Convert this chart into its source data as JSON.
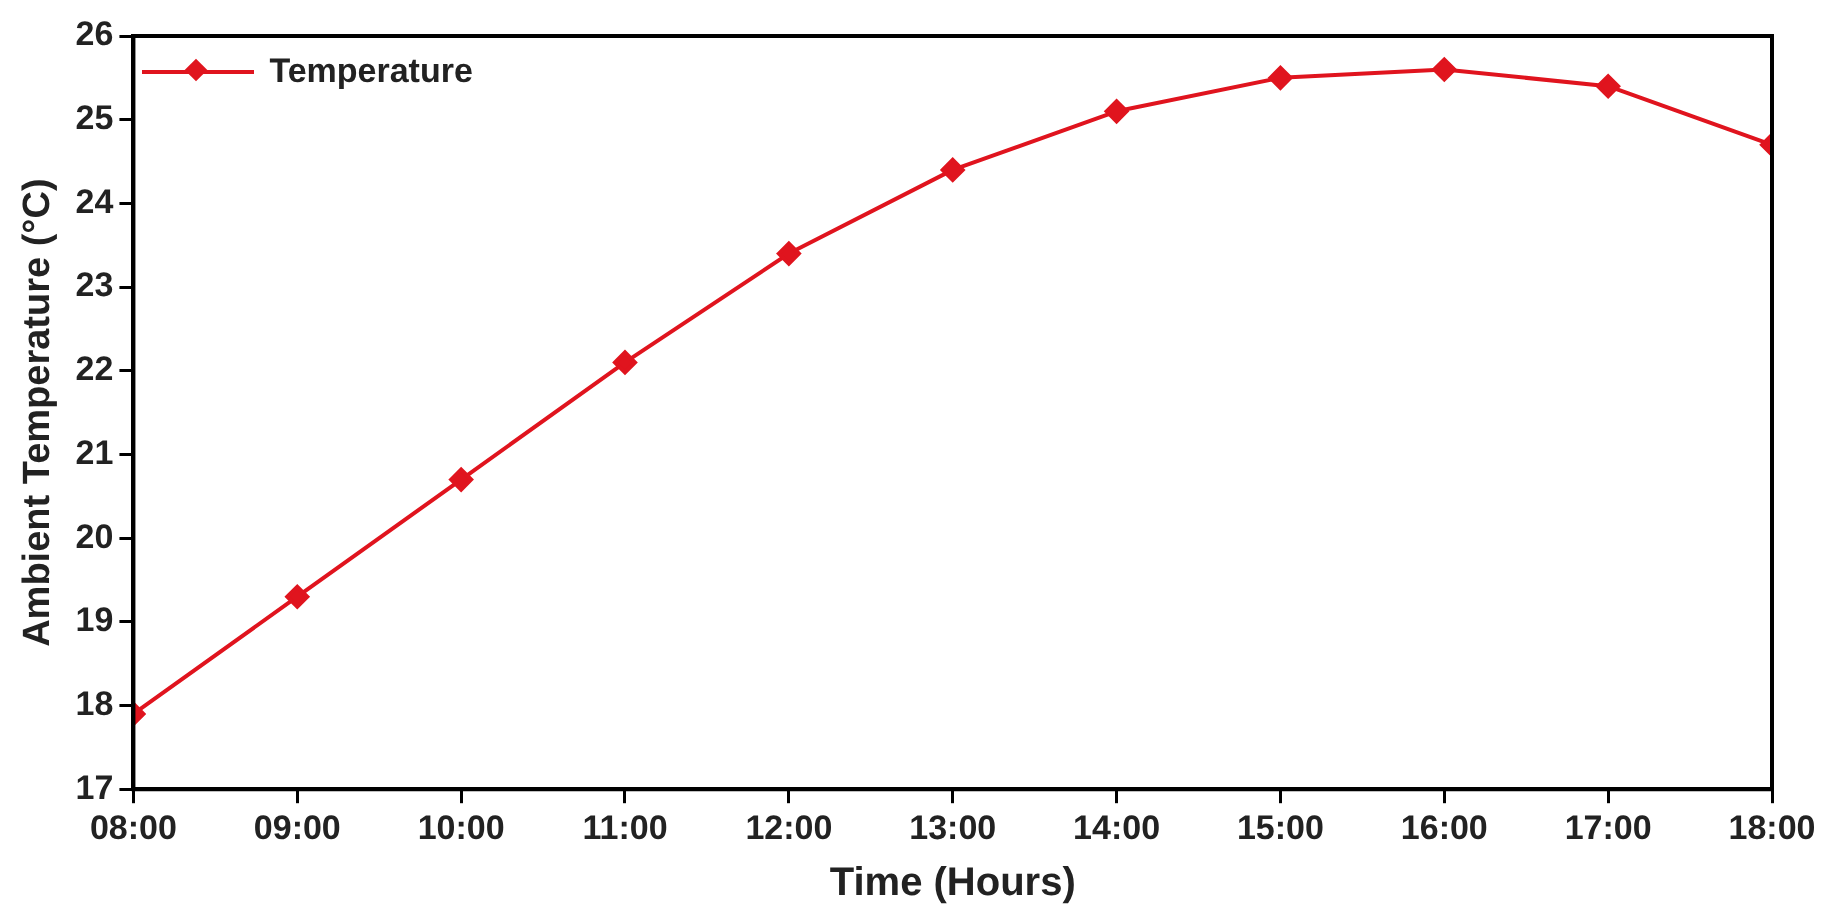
{
  "chart_data": {
    "type": "line",
    "xlabel": "Time (Hours)",
    "ylabel": "Ambient Temperature (°C)",
    "x": [
      8,
      9,
      10,
      11,
      12,
      13,
      14,
      15,
      16,
      17,
      18
    ],
    "series": [
      {
        "name": "Temperature",
        "color": "#e0141e",
        "values": [
          17.9,
          19.3,
          20.7,
          22.1,
          23.4,
          24.4,
          25.1,
          25.5,
          25.6,
          25.4,
          24.7
        ]
      }
    ],
    "xlim": [
      8,
      18
    ],
    "xticks": [
      {
        "value": 8,
        "label": "08:00"
      },
      {
        "value": 9,
        "label": "09:00"
      },
      {
        "value": 10,
        "label": "10:00"
      },
      {
        "value": 11,
        "label": "11:00"
      },
      {
        "value": 12,
        "label": "12:00"
      },
      {
        "value": 13,
        "label": "13:00"
      },
      {
        "value": 14,
        "label": "14:00"
      },
      {
        "value": 15,
        "label": "15:00"
      },
      {
        "value": 16,
        "label": "16:00"
      },
      {
        "value": 17,
        "label": "17:00"
      },
      {
        "value": 18,
        "label": "18:00"
      }
    ],
    "ylim": [
      17,
      26
    ],
    "yticks": [
      17,
      18,
      19,
      20,
      21,
      22,
      23,
      24,
      25,
      26
    ],
    "grid": false,
    "legend": "top left",
    "marker": "diamond",
    "line_style": "solid"
  }
}
